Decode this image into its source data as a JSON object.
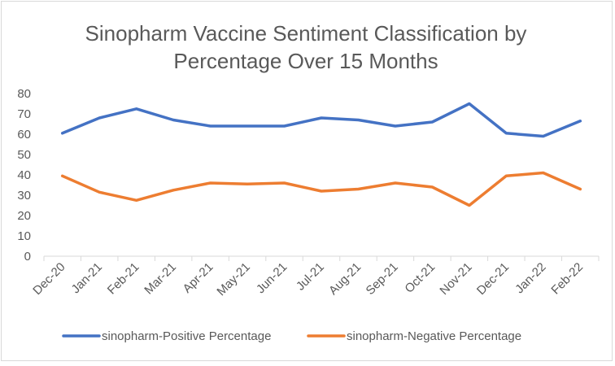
{
  "chart_data": {
    "type": "line",
    "title_lines": [
      "Sinopharm Vaccine Sentiment Classification by",
      "Percentage Over 15 Months"
    ],
    "categories": [
      "Dec-20",
      "Jan-21",
      "Feb-21",
      "Mar-21",
      "Apr-21",
      "May-21",
      "Jun-21",
      "Jul-21",
      "Aug-21",
      "Sep-21",
      "Oct-21",
      "Nov-21",
      "Dec-21",
      "Jan-22",
      "Feb-22"
    ],
    "ylim": [
      0,
      80
    ],
    "yticks": [
      "0",
      "10",
      "20",
      "30",
      "40",
      "50",
      "60",
      "70",
      "80"
    ],
    "grid": false,
    "legend_position": "bottom",
    "series": [
      {
        "name": "sinopharm-Positive Percentage",
        "color": "#4472C4",
        "values": [
          60.5,
          68,
          72.5,
          67,
          64,
          64,
          64,
          68,
          67,
          64,
          66,
          75,
          60.5,
          59,
          66.5
        ]
      },
      {
        "name": "sinopharm-Negative Percentage",
        "color": "#ED7D31",
        "values": [
          39.5,
          31.5,
          27.5,
          32.5,
          36,
          35.5,
          36,
          32,
          33,
          36,
          34,
          25,
          39.5,
          41,
          33
        ]
      }
    ]
  }
}
